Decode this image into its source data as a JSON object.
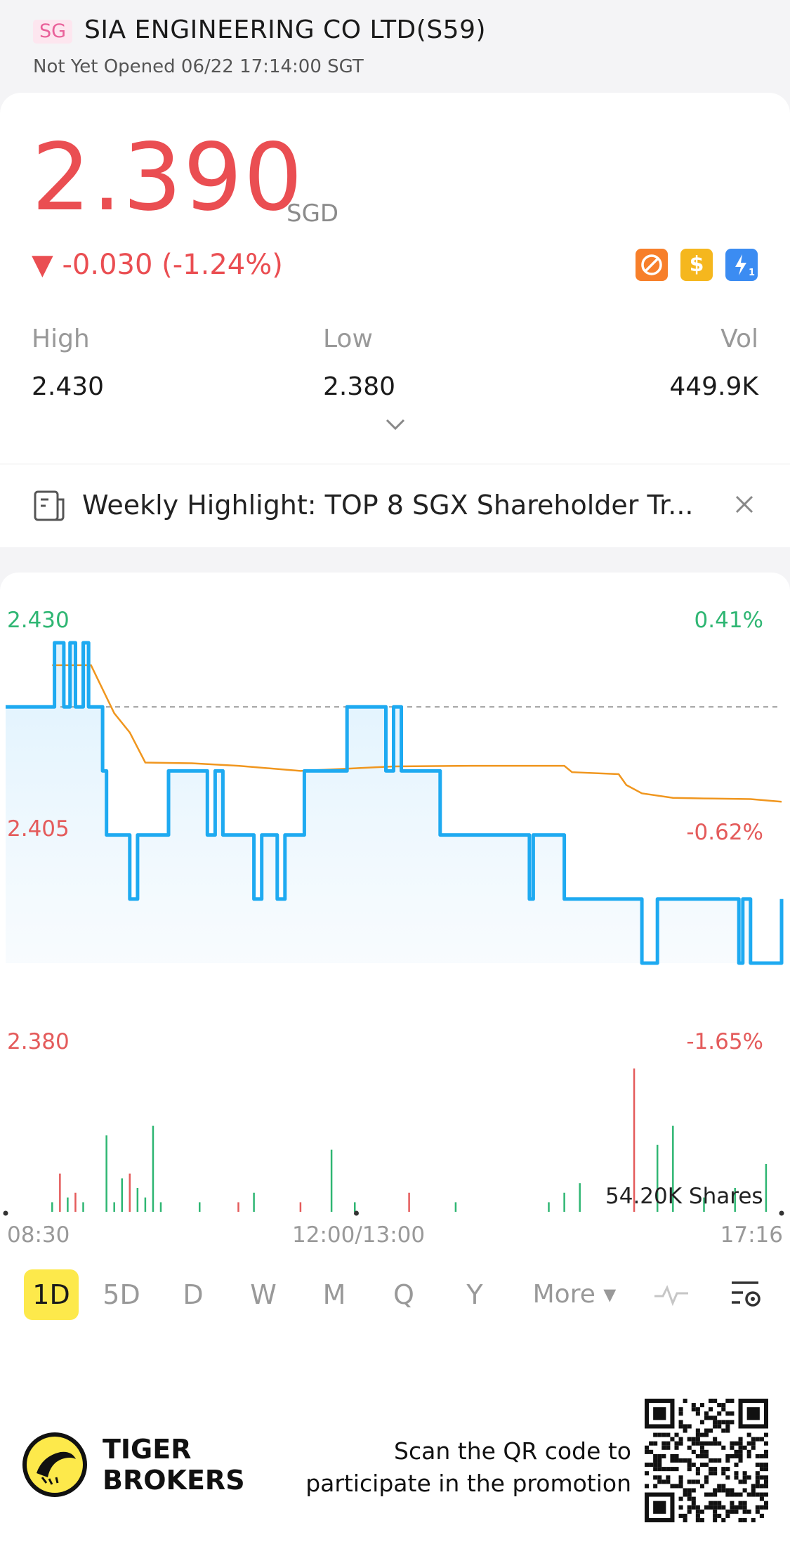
{
  "header": {
    "market_badge": "SG",
    "stock_name": "SIA ENGINEERING CO LTD(S59)",
    "market_status": "Not Yet Opened 06/22 17:14:00 SGT"
  },
  "quote": {
    "price": "2.390",
    "currency": "SGD",
    "change": "▼ -0.030 (-1.24%)",
    "badges": [
      "no-short-icon",
      "dollar-icon",
      "flash-1-icon"
    ],
    "stats": [
      {
        "label": "High",
        "value": "2.430"
      },
      {
        "label": "Low",
        "value": "2.380"
      },
      {
        "label": "Vol",
        "value": "449.9K"
      }
    ]
  },
  "highlight": {
    "text": "Weekly Highlight: TOP 8 SGX Shareholder Tr..."
  },
  "chart": {
    "y_left": [
      "2.430",
      "2.405",
      "2.380"
    ],
    "y_right": [
      "0.41%",
      "-0.62%",
      "-1.65%"
    ],
    "volume_label": "54.20K Shares",
    "time_labels": [
      "08:30",
      "12:00/13:00",
      "17:16"
    ],
    "colors": {
      "price": "#1eaaf1",
      "avg": "#f0961e",
      "up": "#2fb673",
      "down": "#e45b5b"
    }
  },
  "chart_data": {
    "type": "line",
    "x_range": [
      "08:30",
      "17:16"
    ],
    "ylim": [
      2.38,
      2.43
    ],
    "reference_close": 2.42,
    "series": [
      {
        "color": "#1eaaf1",
        "x": [
          0,
          0.055,
          0.063,
          0.075,
          0.083,
          0.09,
          0.1,
          0.107,
          0.115,
          0.125,
          0.13,
          0.14,
          0.16,
          0.17,
          0.18,
          0.2,
          0.21,
          0.25,
          0.26,
          0.27,
          0.28,
          0.29,
          0.32,
          0.33,
          0.35,
          0.36,
          0.37,
          0.385,
          0.44,
          0.48,
          0.49,
          0.5,
          0.51,
          0.52,
          0.56,
          0.67,
          0.675,
          0.68,
          0.69,
          0.72,
          0.81,
          0.82,
          0.84,
          0.94,
          0.945,
          0.95,
          0.96,
          1.0
        ],
        "y": [
          2.42,
          2.42,
          2.43,
          2.42,
          2.43,
          2.42,
          2.43,
          2.42,
          2.42,
          2.41,
          2.4,
          2.4,
          2.39,
          2.4,
          2.4,
          2.4,
          2.41,
          2.41,
          2.4,
          2.41,
          2.4,
          2.4,
          2.39,
          2.4,
          2.39,
          2.4,
          2.4,
          2.41,
          2.42,
          2.42,
          2.41,
          2.42,
          2.41,
          2.41,
          2.4,
          2.4,
          2.39,
          2.4,
          2.4,
          2.39,
          2.39,
          2.38,
          2.39,
          2.39,
          2.38,
          2.39,
          2.38,
          2.39
        ]
      },
      {
        "color": "#f0961e",
        "x": [
          0.06,
          0.11,
          0.12,
          0.14,
          0.16,
          0.18,
          0.24,
          0.3,
          0.38,
          0.5,
          0.6,
          0.72,
          0.73,
          0.79,
          0.8,
          0.82,
          0.86,
          0.9,
          0.96,
          1.0
        ],
        "y": [
          2.4265,
          2.4265,
          2.424,
          2.419,
          2.416,
          2.4113,
          2.4112,
          2.4108,
          2.41,
          2.4107,
          2.4108,
          2.4108,
          2.4098,
          2.4095,
          2.4078,
          2.4065,
          2.4058,
          2.4057,
          2.4056,
          2.4052
        ]
      }
    ],
    "volume": {
      "x": [
        0.06,
        0.07,
        0.08,
        0.09,
        0.1,
        0.13,
        0.14,
        0.15,
        0.16,
        0.17,
        0.18,
        0.19,
        0.2,
        0.25,
        0.3,
        0.32,
        0.38,
        0.42,
        0.45,
        0.52,
        0.58,
        0.7,
        0.72,
        0.74,
        0.81,
        0.84,
        0.86,
        0.9,
        0.94,
        0.98
      ],
      "values": [
        2,
        8,
        3,
        4,
        2,
        16,
        2,
        7,
        8,
        5,
        3,
        18,
        2,
        2,
        2,
        4,
        2,
        13,
        2,
        4,
        2,
        2,
        4,
        6,
        30,
        14,
        18,
        3,
        5,
        10
      ],
      "direction": [
        "up",
        "down",
        "up",
        "down",
        "up",
        "up",
        "up",
        "up",
        "down",
        "up",
        "up",
        "up",
        "up",
        "up",
        "down",
        "up",
        "down",
        "up",
        "up",
        "down",
        "up",
        "up",
        "up",
        "up",
        "down",
        "up",
        "up",
        "up",
        "up",
        "up"
      ]
    }
  },
  "periods": [
    "1D",
    "5D",
    "D",
    "W",
    "M",
    "Q",
    "Y",
    "More ▾"
  ],
  "active_period": "1D",
  "footer": {
    "brand_line1": "TIGER",
    "brand_line2": "BROKERS",
    "promo_line1": "Scan the QR code to",
    "promo_line2": "participate in the promotion"
  }
}
